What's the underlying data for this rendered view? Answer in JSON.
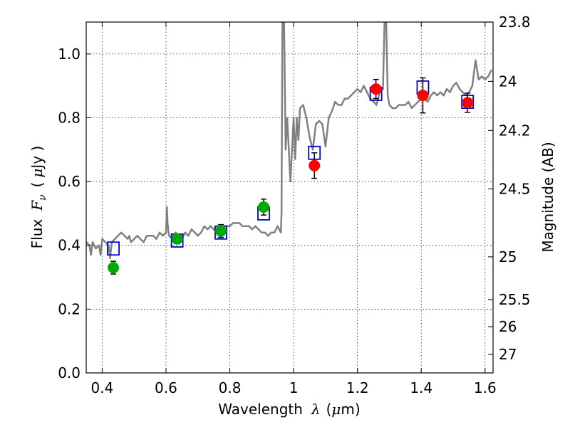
{
  "chart_data": {
    "type": "scatter",
    "xlabel": "Wavelength",
    "xlabel_symbol": "λ",
    "xlabel_unit_open": "(",
    "xlabel_unit_mu": "μ",
    "xlabel_unit_rest": "m)",
    "ylabel": "Flux",
    "ylabel_symbol": "F",
    "ylabel_subscript": "ν",
    "ylabel_unit_open": "(",
    "ylabel_unit_mu": "μ",
    "ylabel_unit_rest": "Jy )",
    "y2label": "Magnitude (AB)",
    "xlim": [
      0.35,
      1.625
    ],
    "ylim": [
      0.0,
      1.1
    ],
    "grid": true,
    "x_ticks": [
      0.4,
      0.6,
      0.8,
      1.0,
      1.2,
      1.4,
      1.6
    ],
    "x_tick_labels": [
      "0.4",
      "0.6",
      "0.8",
      "1",
      "1.2",
      "1.4",
      "1.6"
    ],
    "y_ticks": [
      0.0,
      0.2,
      0.4,
      0.6,
      0.8,
      1.0
    ],
    "y_tick_labels": [
      "0.0",
      "0.2",
      "0.4",
      "0.6",
      "0.8",
      "1.0"
    ],
    "y2_ticks": [
      {
        "label": "23.8",
        "flux": 1.1
      },
      {
        "label": "24",
        "flux": 0.914
      },
      {
        "label": "24.2",
        "flux": 0.76
      },
      {
        "label": "24.5",
        "flux": 0.577
      },
      {
        "label": "25",
        "flux": 0.364
      },
      {
        "label": "25.5",
        "flux": 0.23
      },
      {
        "label": "26",
        "flux": 0.145
      },
      {
        "label": "27",
        "flux": 0.058
      }
    ],
    "colors": {
      "spectrum": "#808080",
      "model": "#0000cc",
      "green": "#00aa00",
      "red": "#ff0000",
      "errorbar": "#000000"
    },
    "model_photometry": {
      "marker": "open-square",
      "x": [
        0.435,
        0.635,
        0.772,
        0.906,
        1.065,
        1.258,
        1.405,
        1.545
      ],
      "y": [
        0.39,
        0.415,
        0.44,
        0.5,
        0.69,
        0.875,
        0.895,
        0.85
      ]
    },
    "observed_green": {
      "marker": "filled-circle",
      "x": [
        0.435,
        0.635,
        0.772,
        0.906
      ],
      "y": [
        0.33,
        0.42,
        0.445,
        0.52
      ],
      "err": [
        0.02,
        0.015,
        0.02,
        0.025
      ]
    },
    "observed_red": {
      "marker": "filled-circle",
      "x": [
        1.065,
        1.258,
        1.405,
        1.545
      ],
      "y": [
        0.65,
        0.89,
        0.87,
        0.847
      ],
      "err": [
        0.04,
        0.03,
        0.055,
        0.03
      ]
    },
    "spectrum": {
      "x": [
        0.35,
        0.36,
        0.365,
        0.37,
        0.38,
        0.39,
        0.395,
        0.4,
        0.41,
        0.42,
        0.425,
        0.43,
        0.44,
        0.45,
        0.46,
        0.47,
        0.48,
        0.485,
        0.49,
        0.5,
        0.51,
        0.52,
        0.53,
        0.54,
        0.55,
        0.56,
        0.57,
        0.58,
        0.59,
        0.6,
        0.603,
        0.605,
        0.608,
        0.61,
        0.62,
        0.63,
        0.64,
        0.65,
        0.66,
        0.67,
        0.68,
        0.69,
        0.7,
        0.71,
        0.72,
        0.73,
        0.74,
        0.75,
        0.76,
        0.77,
        0.78,
        0.79,
        0.8,
        0.81,
        0.82,
        0.83,
        0.84,
        0.85,
        0.86,
        0.87,
        0.88,
        0.89,
        0.9,
        0.91,
        0.92,
        0.93,
        0.94,
        0.95,
        0.955,
        0.96,
        0.962,
        0.965,
        0.97,
        0.975,
        0.98,
        0.99,
        1.0,
        1.005,
        1.01,
        1.015,
        1.02,
        1.03,
        1.04,
        1.05,
        1.06,
        1.07,
        1.08,
        1.09,
        1.1,
        1.11,
        1.12,
        1.13,
        1.14,
        1.15,
        1.16,
        1.17,
        1.18,
        1.19,
        1.2,
        1.21,
        1.22,
        1.23,
        1.24,
        1.25,
        1.26,
        1.27,
        1.28,
        1.285,
        1.29,
        1.295,
        1.3,
        1.31,
        1.32,
        1.33,
        1.34,
        1.35,
        1.36,
        1.37,
        1.38,
        1.39,
        1.4,
        1.41,
        1.42,
        1.43,
        1.44,
        1.45,
        1.46,
        1.47,
        1.48,
        1.49,
        1.5,
        1.51,
        1.52,
        1.53,
        1.54,
        1.55,
        1.56,
        1.57,
        1.575,
        1.58,
        1.59,
        1.6,
        1.61,
        1.62
      ],
      "y": [
        0.41,
        0.4,
        0.37,
        0.41,
        0.39,
        0.4,
        0.37,
        0.42,
        0.41,
        0.4,
        0.36,
        0.41,
        0.42,
        0.43,
        0.44,
        0.43,
        0.42,
        0.43,
        0.41,
        0.42,
        0.43,
        0.42,
        0.41,
        0.43,
        0.43,
        0.43,
        0.42,
        0.44,
        0.43,
        0.44,
        0.52,
        0.47,
        0.44,
        0.43,
        0.42,
        0.44,
        0.43,
        0.42,
        0.44,
        0.43,
        0.45,
        0.44,
        0.43,
        0.44,
        0.46,
        0.45,
        0.46,
        0.45,
        0.44,
        0.45,
        0.46,
        0.46,
        0.46,
        0.47,
        0.47,
        0.47,
        0.46,
        0.46,
        0.46,
        0.45,
        0.46,
        0.45,
        0.44,
        0.44,
        0.43,
        0.44,
        0.44,
        0.46,
        0.45,
        0.44,
        0.5,
        1.1,
        1.1,
        0.7,
        0.8,
        0.6,
        0.8,
        0.67,
        0.8,
        0.73,
        0.83,
        0.84,
        0.8,
        0.74,
        0.7,
        0.78,
        0.79,
        0.78,
        0.71,
        0.8,
        0.82,
        0.85,
        0.84,
        0.84,
        0.86,
        0.86,
        0.87,
        0.88,
        0.89,
        0.88,
        0.9,
        0.88,
        0.86,
        0.85,
        0.84,
        0.88,
        0.89,
        1.1,
        1.1,
        0.87,
        0.84,
        0.83,
        0.83,
        0.84,
        0.84,
        0.84,
        0.85,
        0.83,
        0.84,
        0.85,
        0.86,
        0.86,
        0.85,
        0.87,
        0.88,
        0.87,
        0.88,
        0.87,
        0.89,
        0.88,
        0.9,
        0.91,
        0.89,
        0.88,
        0.87,
        0.88,
        0.9,
        0.98,
        0.95,
        0.92,
        0.93,
        0.92,
        0.93,
        0.95
      ]
    }
  }
}
